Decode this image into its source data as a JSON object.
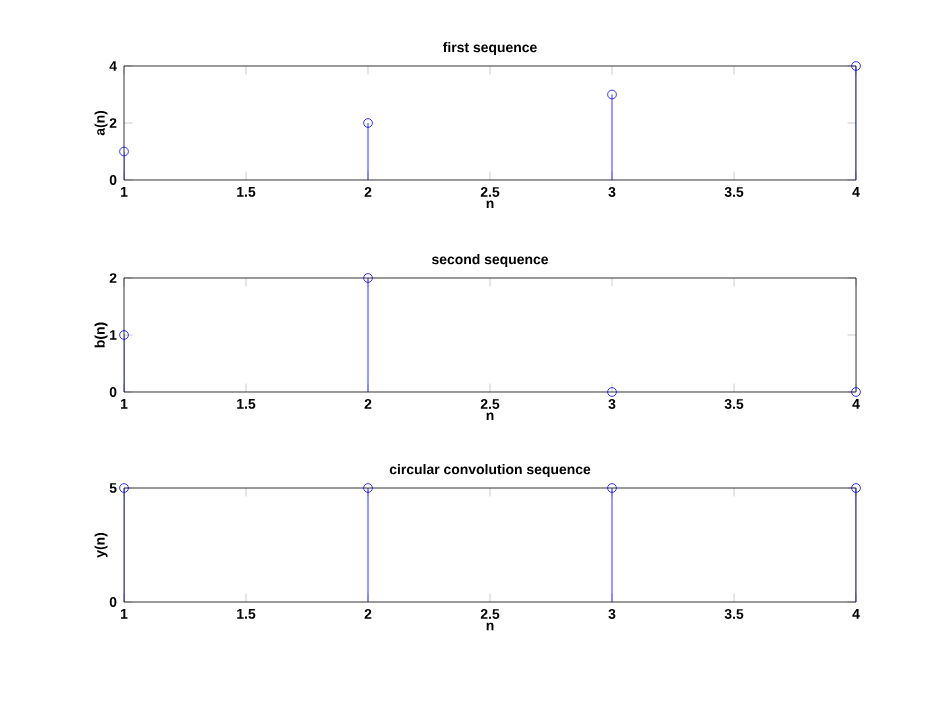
{
  "chart_data": [
    {
      "type": "lollipop",
      "title": "first sequence",
      "xlabel": "n",
      "ylabel": "a(n)",
      "x": [
        1,
        2,
        3,
        4
      ],
      "values": [
        1,
        2,
        3,
        4
      ],
      "color": "#0000ff",
      "marker": "circle",
      "xlim": [
        1,
        4
      ],
      "xticks": [
        1,
        1.5,
        2,
        2.5,
        3,
        3.5,
        4
      ],
      "ylim": [
        0,
        4
      ],
      "yticks": [
        0,
        2,
        4
      ]
    },
    {
      "type": "lollipop",
      "title": "second sequence",
      "xlabel": "n",
      "ylabel": "b(n)",
      "x": [
        1,
        2,
        3,
        4
      ],
      "values": [
        1,
        2,
        0,
        0
      ],
      "color": "#0000ff",
      "marker": "circle",
      "xlim": [
        1,
        4
      ],
      "xticks": [
        1,
        1.5,
        2,
        2.5,
        3,
        3.5,
        4
      ],
      "ylim": [
        0,
        2
      ],
      "yticks": [
        0,
        1,
        2
      ]
    },
    {
      "type": "lollipop",
      "title": "circular convolution sequence",
      "xlabel": "n",
      "ylabel": "y(n)",
      "x": [
        1,
        2,
        3,
        4
      ],
      "values": [
        5,
        5,
        5,
        5
      ],
      "color": "#0000ff",
      "marker": "circle",
      "xlim": [
        1,
        4
      ],
      "xticks": [
        1,
        1.5,
        2,
        2.5,
        3,
        3.5,
        4
      ],
      "ylim": [
        0,
        5
      ],
      "yticks": [
        0,
        5
      ]
    }
  ]
}
